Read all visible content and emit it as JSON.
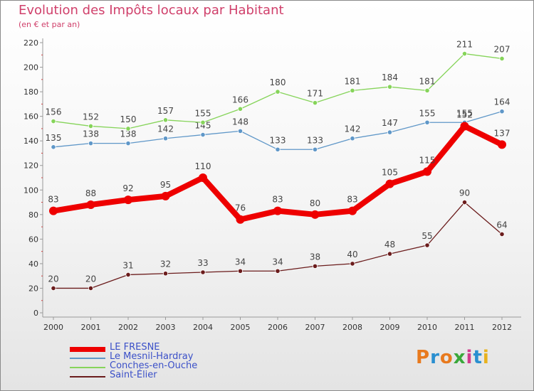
{
  "title": "Evolution des Impôts locaux par Habitant",
  "subtitle": "(en € et par an)",
  "logo_text": "Proxiti",
  "logo_colors": [
    "#e87a1e",
    "#2a8fd0",
    "#e87a1e",
    "#3aa83a",
    "#d23b8c",
    "#2a8fd0",
    "#e8b21e"
  ],
  "chart_data": {
    "type": "line",
    "x": [
      "2000",
      "2001",
      "2002",
      "2003",
      "2004",
      "2005",
      "2006",
      "2007",
      "2008",
      "2009",
      "2010",
      "2011",
      "2012"
    ],
    "ylim": [
      0,
      220
    ],
    "yticks": [
      0,
      20,
      40,
      60,
      80,
      100,
      120,
      140,
      160,
      180,
      200,
      220
    ],
    "grid": false,
    "legend_position": "bottom-left",
    "series": [
      {
        "name": "LE FRESNE",
        "color": "#ee0000",
        "values": [
          83,
          88,
          92,
          95,
          110,
          76,
          83,
          80,
          83,
          105,
          115,
          152,
          137
        ]
      },
      {
        "name": "Le Mesnil-Hardray",
        "color": "#5f97c8",
        "values": [
          135,
          138,
          138,
          142,
          145,
          148,
          133,
          133,
          142,
          147,
          155,
          155,
          164
        ]
      },
      {
        "name": "Conches-en-Ouche",
        "color": "#86d45a",
        "values": [
          156,
          152,
          150,
          157,
          155,
          166,
          180,
          171,
          181,
          184,
          181,
          211,
          207
        ]
      },
      {
        "name": "Saint-Élier",
        "color": "#6b1c1c",
        "values": [
          20,
          20,
          31,
          32,
          33,
          34,
          34,
          38,
          40,
          48,
          55,
          90,
          64
        ]
      }
    ]
  }
}
